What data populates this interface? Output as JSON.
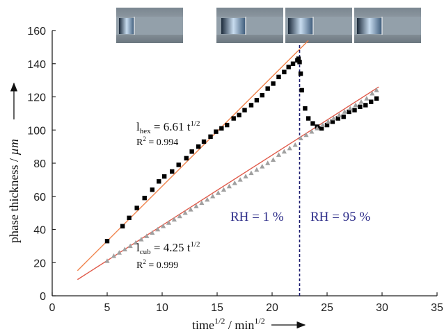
{
  "chart_data": {
    "type": "scatter",
    "xlabel": {
      "base": "time",
      "base_sup": "1/2",
      "unit": "min",
      "unit_sup": "1/2"
    },
    "ylabel": {
      "base": "phase thickness / ",
      "unit": "µm"
    },
    "xlim": [
      0,
      35
    ],
    "ylim": [
      0,
      160
    ],
    "xticks": [
      0,
      5,
      10,
      15,
      20,
      25,
      30,
      35
    ],
    "yticks": [
      0,
      20,
      40,
      60,
      80,
      100,
      120,
      140,
      160
    ],
    "grid": false,
    "series": [
      {
        "marker": "square",
        "color": "#000000",
        "x": [
          5.0,
          6.4,
          7.0,
          7.7,
          8.4,
          9.1,
          9.7,
          10.2,
          10.9,
          11.5,
          12.2,
          12.7,
          13.3,
          13.8,
          14.4,
          14.9,
          15.4,
          15.9,
          16.5,
          17.0,
          17.5,
          18.1,
          18.6,
          19.1,
          19.6,
          20.1,
          20.6,
          21.1,
          21.5,
          21.9,
          22.3,
          22.4,
          22.5,
          22.6,
          22.7,
          23.0,
          23.3,
          23.7,
          24.1,
          24.5,
          25.0,
          25.5,
          26.0,
          26.5,
          27.0,
          27.5,
          28.0,
          28.5,
          29.0,
          29.5
        ],
        "y": [
          33,
          42,
          47,
          53,
          59,
          64,
          69,
          72,
          75,
          79,
          83,
          87,
          90,
          93,
          96,
          99,
          101,
          103,
          107,
          109,
          112,
          115,
          118,
          121,
          125,
          128,
          132,
          135,
          138,
          140,
          142,
          143,
          141,
          134,
          124,
          113,
          107,
          104,
          102,
          101,
          103,
          105,
          107,
          108,
          111,
          112,
          114,
          115,
          117,
          119
        ]
      },
      {
        "marker": "triangle",
        "color": "#a0a0a0",
        "x": [
          5.0,
          5.6,
          6.1,
          6.6,
          7.1,
          7.6,
          8.1,
          8.6,
          9.1,
          9.6,
          10.1,
          10.6,
          11.1,
          11.6,
          12.1,
          12.6,
          13.1,
          13.6,
          14.1,
          14.6,
          15.1,
          15.6,
          16.1,
          16.6,
          17.1,
          17.6,
          18.1,
          18.6,
          19.1,
          19.6,
          20.1,
          20.6,
          21.1,
          21.6,
          22.1,
          22.6,
          23.1,
          23.6,
          24.1,
          24.6,
          25.1,
          25.6,
          26.1,
          26.6,
          27.1,
          27.6,
          28.1,
          28.6,
          29.1,
          29.5
        ],
        "y": [
          21,
          24,
          26,
          28,
          30,
          32,
          34,
          36,
          38,
          40,
          42,
          44,
          46,
          48,
          50,
          52,
          54,
          56,
          58,
          60,
          62,
          64,
          66,
          68,
          70,
          72,
          74,
          76,
          78,
          80,
          82,
          85,
          87,
          89,
          91,
          95,
          97,
          99,
          101,
          103,
          105,
          107,
          109,
          111,
          113,
          115,
          117,
          119,
          122,
          124
        ]
      }
    ],
    "fits": [
      {
        "color": "#f0824a",
        "x": [
          2.3,
          23.3
        ],
        "y": [
          15.2,
          154
        ]
      },
      {
        "color": "#e05a4a",
        "x": [
          2.3,
          29.7
        ],
        "y": [
          9.8,
          126
        ]
      }
    ],
    "vline": {
      "x": 22.5,
      "color": "#1a1a6e"
    },
    "annotations": [
      {
        "main": "l",
        "sub": "hex",
        "eq": " = 6.61 t",
        "sup": "1/2",
        "r2": "R",
        "r2sup": "2",
        "r2val": " = 0.994"
      },
      {
        "main": "l",
        "sub": "cub",
        "eq": " = 4.25 t",
        "sup": "1/2",
        "r2": "R",
        "r2sup": "2",
        "r2val": " = 0.999"
      }
    ],
    "regions": [
      "RH = 1 %",
      "RH = 95 %"
    ]
  }
}
